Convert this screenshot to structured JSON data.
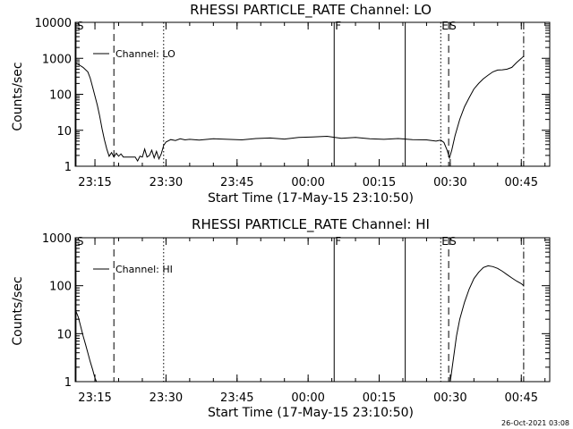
{
  "footer": {
    "timestamp": "26-Oct-2021 03:08"
  },
  "chart_data": [
    {
      "type": "line",
      "title": "RHESSI PARTICLE_RATE Channel: LO",
      "xlabel": "Start Time (17-May-15 23:10:50)",
      "ylabel": "Counts/sec",
      "yscale": "log",
      "xlim": [
        "23:10:50",
        "00:51:00"
      ],
      "ylim": [
        1,
        10000
      ],
      "xticks": [
        "23:15",
        "23:30",
        "23:45",
        "00:00",
        "00:15",
        "00:30",
        "00:45"
      ],
      "yticks": [
        "1",
        "10",
        "100",
        "1000",
        "10000"
      ],
      "legend": {
        "position": "top-left",
        "entries": [
          "Channel: LO"
        ]
      },
      "markers": [
        {
          "label": "S",
          "time": "23:11:00",
          "style": "solid"
        },
        {
          "label": "",
          "time": "23:19:00",
          "style": "dashed"
        },
        {
          "label": "",
          "time": "23:29:30",
          "style": "dotted"
        },
        {
          "label": "F",
          "time": "00:05:30",
          "style": "solid"
        },
        {
          "label": "",
          "time": "00:20:30",
          "style": "solid"
        },
        {
          "label": "E",
          "time": "00:28:00",
          "style": "dotted"
        },
        {
          "label": "S",
          "time": "00:29:40",
          "style": "dashed"
        },
        {
          "label": "",
          "time": "00:45:30",
          "style": "dashdot"
        }
      ],
      "series": [
        {
          "name": "Channel: LO",
          "x": [
            "23:10:50",
            "23:11:30",
            "23:12:30",
            "23:13:30",
            "23:14:00",
            "23:14:30",
            "23:15:00",
            "23:15:30",
            "23:16:00",
            "23:16:30",
            "23:17:00",
            "23:17:30",
            "23:18:00",
            "23:18:30",
            "23:19:00",
            "23:19:30",
            "23:20:00",
            "23:20:30",
            "23:21:00",
            "23:21:30",
            "23:22:00",
            "23:22:30",
            "23:23:00",
            "23:23:30",
            "23:24:00",
            "23:24:30",
            "23:25:00",
            "23:25:30",
            "23:26:00",
            "23:26:30",
            "23:27:00",
            "23:27:30",
            "23:28:00",
            "23:28:30",
            "23:29:00",
            "23:29:30",
            "23:30:00",
            "23:31:00",
            "23:32:00",
            "23:33:00",
            "23:34:00",
            "23:35:00",
            "23:37:00",
            "23:40:00",
            "23:43:00",
            "23:46:00",
            "23:49:00",
            "23:52:00",
            "23:55:00",
            "23:58:00",
            "00:01:00",
            "00:04:00",
            "00:07:00",
            "00:10:00",
            "00:13:00",
            "00:16:00",
            "00:19:00",
            "00:22:00",
            "00:25:00",
            "00:27:00",
            "00:28:00",
            "00:28:40",
            "00:29:20",
            "00:29:50",
            "00:30:20",
            "00:31:00",
            "00:32:00",
            "00:33:00",
            "00:34:00",
            "00:35:00",
            "00:36:00",
            "00:37:00",
            "00:38:00",
            "00:39:00",
            "00:40:00",
            "00:41:00",
            "00:42:00",
            "00:43:00",
            "00:44:00",
            "00:45:00",
            "00:45:30"
          ],
          "values": [
            750,
            680,
            560,
            420,
            280,
            160,
            90,
            50,
            25,
            11,
            5.5,
            3.0,
            1.9,
            2.4,
            1.8,
            2.3,
            1.9,
            2.2,
            1.8,
            1.8,
            1.8,
            1.8,
            1.8,
            1.8,
            1.4,
            1.9,
            1.8,
            3.0,
            1.8,
            2.0,
            2.8,
            1.7,
            2.6,
            1.6,
            2.2,
            3.8,
            4.7,
            5.5,
            5.2,
            5.8,
            5.4,
            5.6,
            5.3,
            5.8,
            5.6,
            5.4,
            5.9,
            6.1,
            5.7,
            6.3,
            6.5,
            6.8,
            6.0,
            6.3,
            5.8,
            5.6,
            5.9,
            5.5,
            5.4,
            5.0,
            5.3,
            4.6,
            2.8,
            1.7,
            2.8,
            7,
            20,
            45,
            80,
            140,
            200,
            270,
            340,
            420,
            470,
            480,
            500,
            560,
            760,
            1000,
            1150
          ]
        }
      ]
    },
    {
      "type": "line",
      "title": "RHESSI PARTICLE_RATE Channel: HI",
      "xlabel": "Start Time (17-May-15 23:10:50)",
      "ylabel": "Counts/sec",
      "yscale": "log",
      "xlim": [
        "23:10:50",
        "00:51:00"
      ],
      "ylim": [
        1,
        1000
      ],
      "xticks": [
        "23:15",
        "23:30",
        "23:45",
        "00:00",
        "00:15",
        "00:30",
        "00:45"
      ],
      "yticks": [
        "1",
        "10",
        "100",
        "1000"
      ],
      "legend": {
        "position": "top-left",
        "entries": [
          "Channel: HI"
        ]
      },
      "markers": [
        {
          "label": "S",
          "time": "23:11:00",
          "style": "solid"
        },
        {
          "label": "",
          "time": "23:19:00",
          "style": "dashed"
        },
        {
          "label": "",
          "time": "23:29:30",
          "style": "dotted"
        },
        {
          "label": "F",
          "time": "00:05:30",
          "style": "solid"
        },
        {
          "label": "",
          "time": "00:20:30",
          "style": "solid"
        },
        {
          "label": "E",
          "time": "00:28:00",
          "style": "dotted"
        },
        {
          "label": "S",
          "time": "00:29:40",
          "style": "dashed"
        },
        {
          "label": "",
          "time": "00:45:30",
          "style": "dashdot"
        }
      ],
      "series": [
        {
          "name": "Channel: HI",
          "x": [
            "23:10:50",
            "23:11:30",
            "23:12:00",
            "23:12:30",
            "23:13:00",
            "23:13:30",
            "23:14:00",
            "23:14:30",
            "23:15:00",
            "23:15:20",
            "00:30:00",
            "00:30:40",
            "00:31:20",
            "00:32:00",
            "00:33:00",
            "00:34:00",
            "00:35:00",
            "00:36:00",
            "00:37:00",
            "00:38:00",
            "00:39:00",
            "00:40:00",
            "00:41:00",
            "00:42:00",
            "00:43:00",
            "00:44:00",
            "00:45:00",
            "00:45:30"
          ],
          "values": [
            32,
            22,
            14,
            9,
            6,
            4,
            2.6,
            1.8,
            1.2,
            1.0,
            1.0,
            3,
            9,
            20,
            45,
            85,
            140,
            190,
            240,
            260,
            250,
            230,
            200,
            170,
            145,
            125,
            110,
            100
          ]
        }
      ]
    }
  ]
}
